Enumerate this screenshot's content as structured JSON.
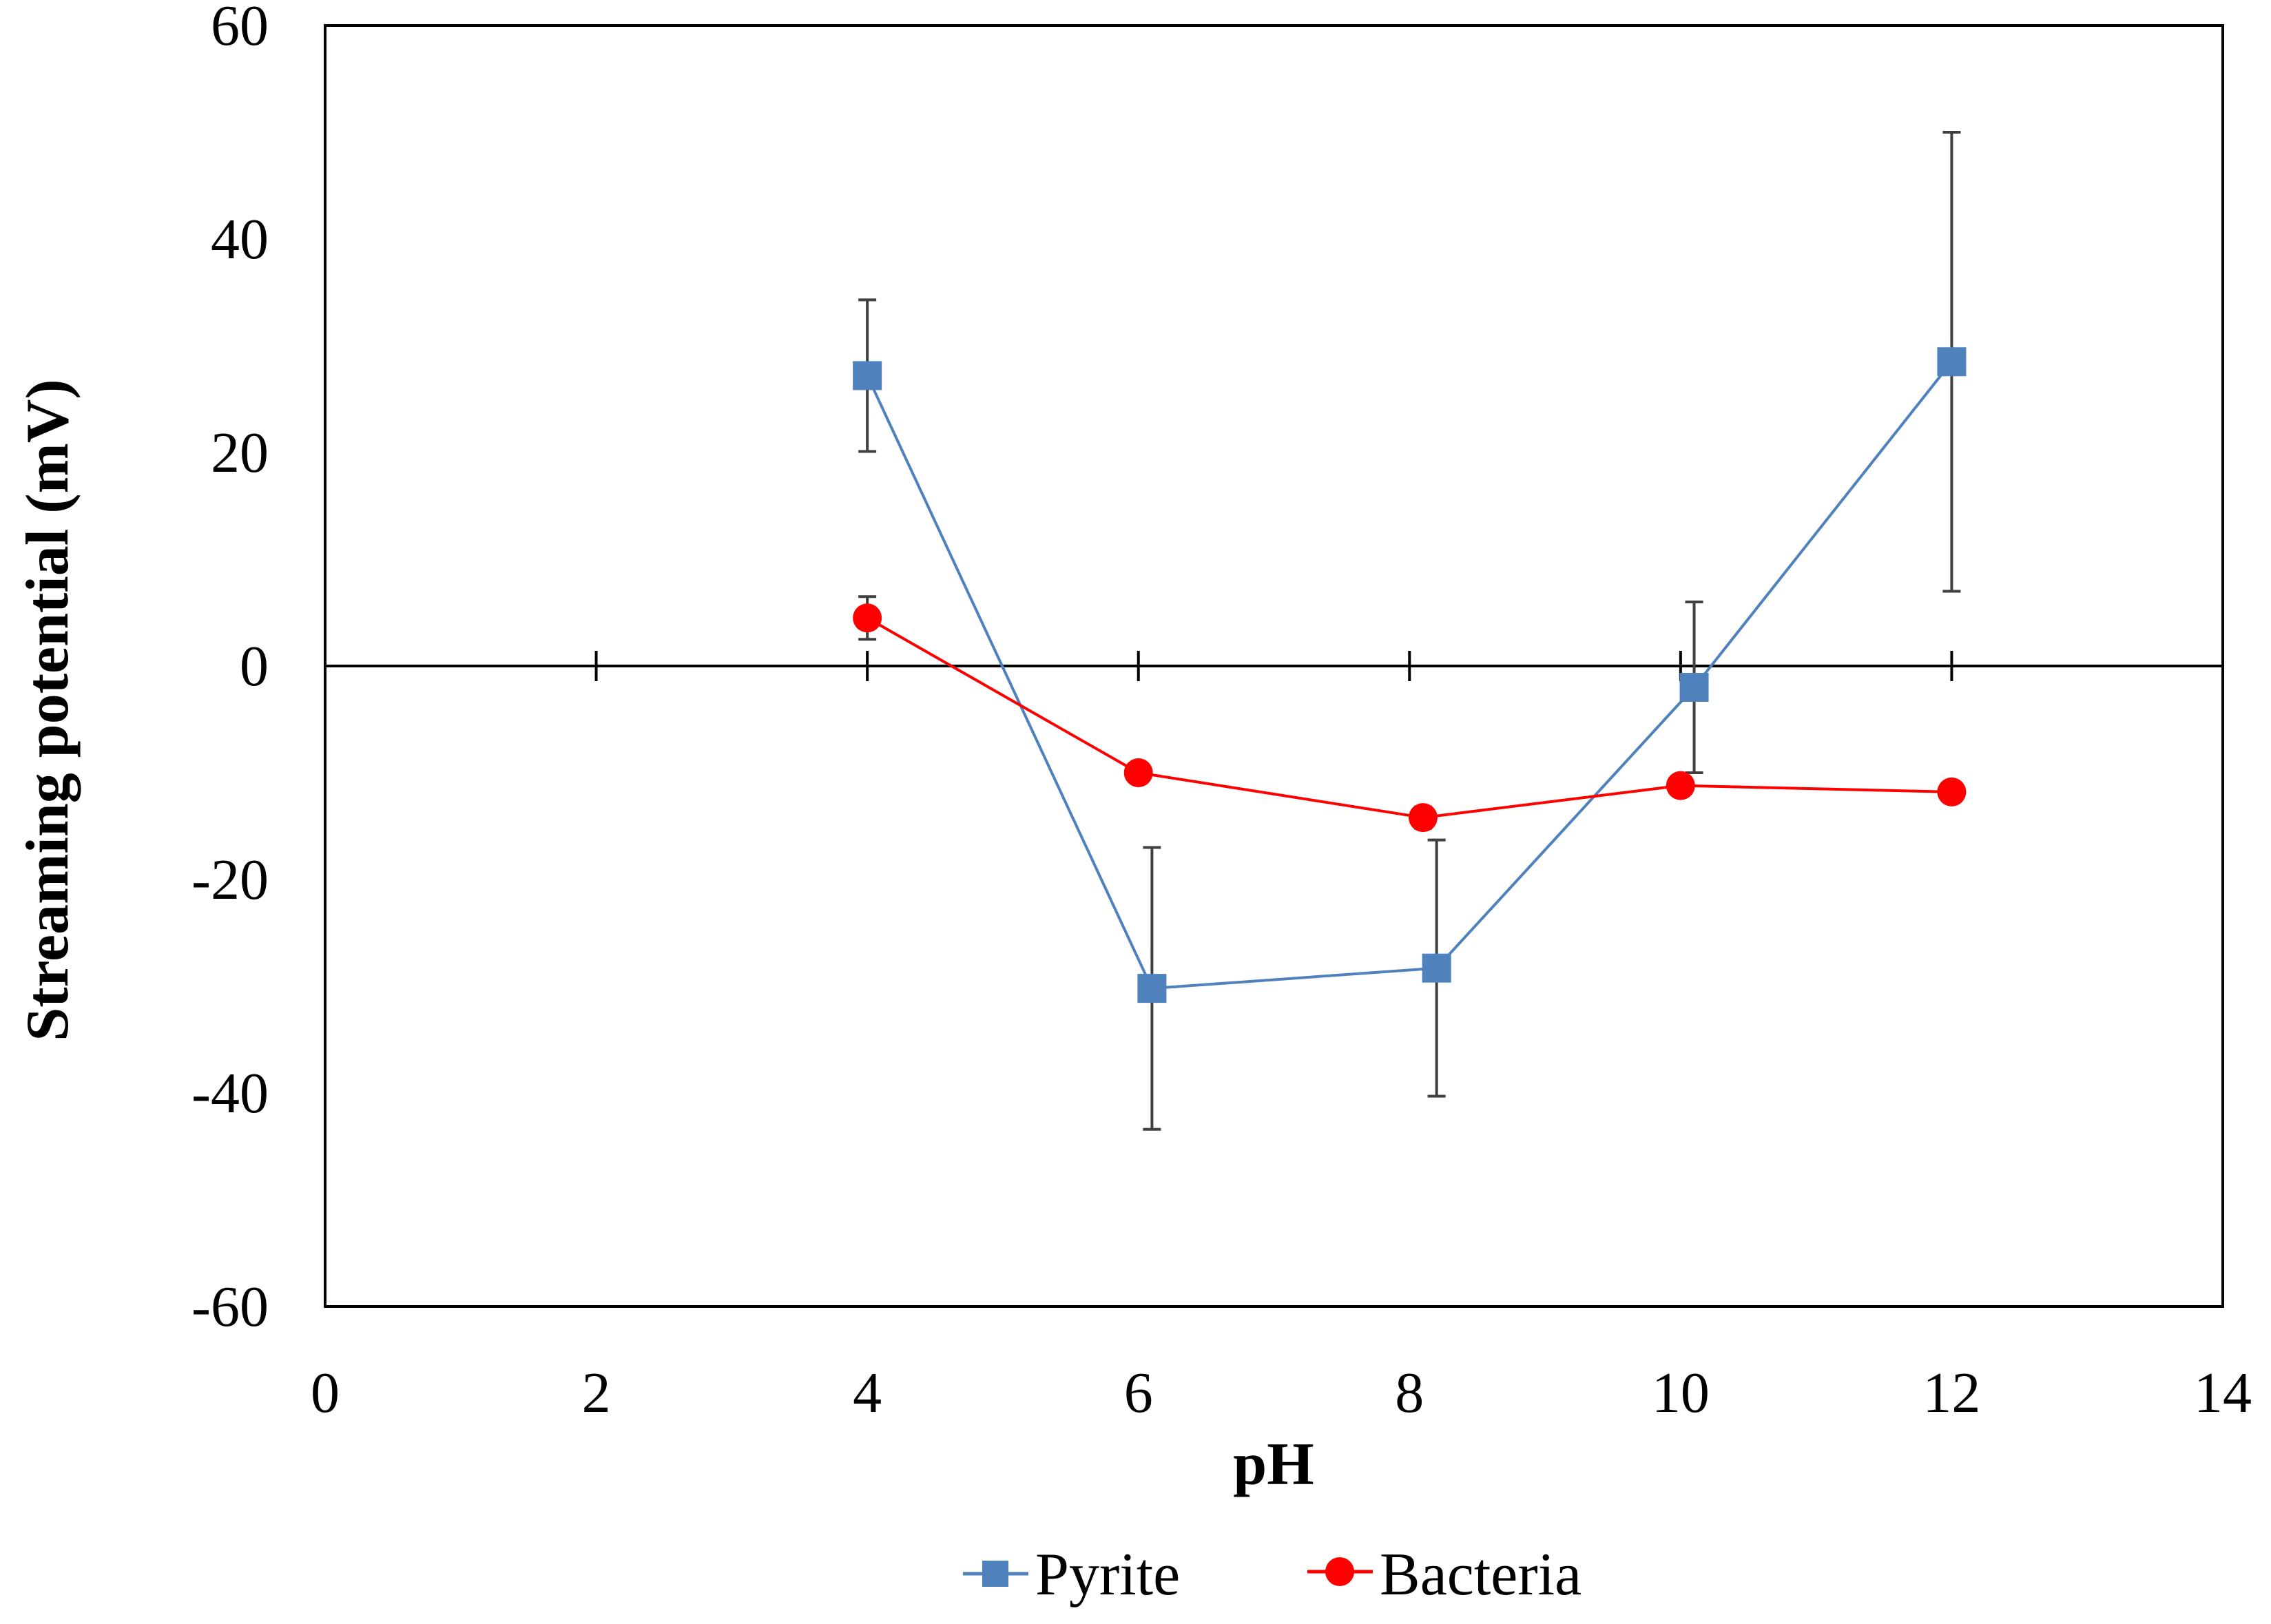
{
  "chart_data": {
    "type": "scatter",
    "title": "",
    "xlabel": "pH",
    "ylabel": "Streaming potential (mV)",
    "xlim": [
      0,
      14
    ],
    "ylim": [
      -60,
      60
    ],
    "xticks": [
      0,
      2,
      4,
      6,
      8,
      10,
      12,
      14
    ],
    "yticks": [
      -60,
      -40,
      -20,
      0,
      20,
      40,
      60
    ],
    "grid": false,
    "legend_position": "bottom-center",
    "series": [
      {
        "name": "Pyrite",
        "color": "#4F81BD",
        "marker": "square",
        "x": [
          4.0,
          6.1,
          8.2,
          10.1,
          12.0
        ],
        "y": [
          27.2,
          -30.2,
          -28.3,
          -2.0,
          28.5
        ],
        "err": [
          7.1,
          13.2,
          12.0,
          8.0,
          21.5
        ]
      },
      {
        "name": "Bacteria",
        "color": "#FF0000",
        "marker": "circle",
        "x": [
          4.0,
          6.0,
          8.1,
          10.0,
          12.0
        ],
        "y": [
          4.5,
          -10.0,
          -14.2,
          -11.2,
          -11.8
        ],
        "err": [
          2.0,
          0.5,
          1.0,
          0.5,
          0.5
        ]
      }
    ]
  }
}
